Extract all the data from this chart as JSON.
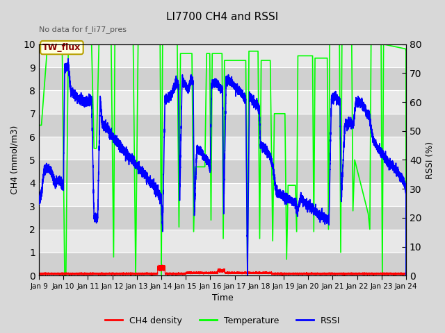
{
  "title": "LI7700 CH4 and RSSI",
  "top_left_text": "No data for f_li77_pres",
  "annotation_box": "TW_flux",
  "xlabel": "Time",
  "ylabel_left": "CH4 (mmol/m3)",
  "ylabel_right": "RSSI (%)",
  "xlim": [
    9,
    24
  ],
  "ylim_left": [
    0,
    10.0
  ],
  "ylim_right": [
    0,
    80
  ],
  "xtick_labels": [
    "Jan 9",
    "Jan 10",
    "Jan 11",
    "Jan 12",
    "Jan 13",
    "Jan 14",
    "Jan 15",
    "Jan 16",
    "Jan 17",
    "Jan 18",
    "Jan 19",
    "Jan 20",
    "Jan 21",
    "Jan 22",
    "Jan 23",
    "Jan 24"
  ],
  "xtick_positions": [
    9,
    10,
    11,
    12,
    13,
    14,
    15,
    16,
    17,
    18,
    19,
    20,
    21,
    22,
    23,
    24
  ],
  "ytick_left": [
    0.0,
    1.0,
    2.0,
    3.0,
    4.0,
    5.0,
    6.0,
    7.0,
    8.0,
    9.0,
    10.0
  ],
  "ytick_right": [
    0,
    10,
    20,
    30,
    40,
    50,
    60,
    70,
    80
  ],
  "bg_color": "#d8d8d8",
  "plot_bg_color_light": "#e8e8e8",
  "plot_bg_color_dark": "#d0d0d0",
  "ch4_color": "red",
  "temp_color": "#00ff00",
  "rssi_color": "blue",
  "legend_labels": [
    "CH4 density",
    "Temperature",
    "RSSI"
  ],
  "grid_color": "#ffffff",
  "fig_width": 6.4,
  "fig_height": 4.8,
  "dpi": 100
}
